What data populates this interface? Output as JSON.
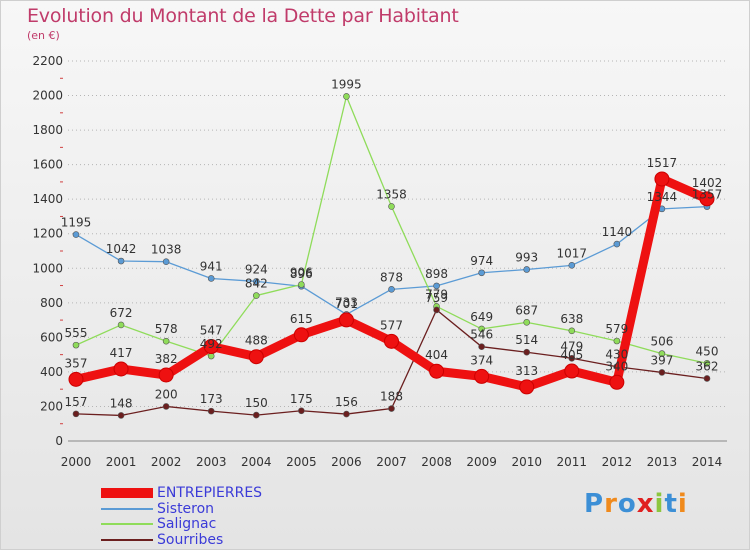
{
  "title": "Evolution du Montant de la Dette par Habitant",
  "unit": "(en €)",
  "logo": {
    "text": "Proxiti",
    "letter_colors": [
      "#3c8fd6",
      "#f08a1c",
      "#3c8fd6",
      "#e02020",
      "#8dc63f",
      "#3c8fd6",
      "#f08a1c"
    ]
  },
  "chart_data": {
    "type": "line",
    "title": "Evolution du Montant de la Dette par Habitant",
    "ylabel": "(en €)",
    "xlabel": "",
    "x": [
      "2000",
      "2001",
      "2002",
      "2003",
      "2004",
      "2005",
      "2006",
      "2007",
      "2008",
      "2009",
      "2010",
      "2011",
      "2012",
      "2013",
      "2014"
    ],
    "ylim": [
      0,
      2200
    ],
    "yticks": [
      0,
      200,
      400,
      600,
      800,
      1000,
      1200,
      1400,
      1600,
      1800,
      2000,
      2200
    ],
    "grid": "horizontal dotted",
    "legend": "bottom-left",
    "series": [
      {
        "name": "Sisteron",
        "color": "#5b9bd5",
        "values": [
          1195,
          1042,
          1038,
          941,
          924,
          896,
          733,
          878,
          898,
          974,
          993,
          1017,
          1140,
          1344,
          1357
        ]
      },
      {
        "name": "Salignac",
        "color": "#8fdc5a",
        "values": [
          555,
          672,
          578,
          492,
          842,
          906,
          1995,
          1358,
          779,
          649,
          687,
          638,
          579,
          506,
          450
        ]
      },
      {
        "name": "Sourribes",
        "color": "#6b1f1f",
        "values": [
          157,
          148,
          200,
          173,
          150,
          175,
          156,
          188,
          759,
          546,
          514,
          479,
          430,
          397,
          362
        ]
      },
      {
        "name": "ENTREPIERRES",
        "color": "#ee1111",
        "values": [
          357,
          417,
          382,
          547,
          488,
          615,
          701,
          577,
          404,
          374,
          313,
          405,
          340,
          1517,
          1402
        ]
      }
    ]
  }
}
